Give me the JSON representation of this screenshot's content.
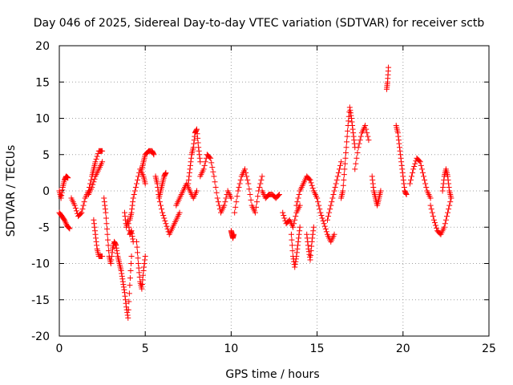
{
  "chart_data": {
    "type": "scatter",
    "title": "Day 046 of 2025, Sidereal Day-to-day VTEC variation (SDTVAR) for receiver sctb",
    "xlabel": "GPS time / hours",
    "ylabel": "SDTVAR / TECUs",
    "xlim": [
      0,
      25
    ],
    "ylim": [
      -20,
      20
    ],
    "x_ticks": [
      0,
      5,
      10,
      15,
      20,
      25
    ],
    "y_ticks": [
      -20,
      -15,
      -10,
      -5,
      0,
      5,
      10,
      15,
      20
    ],
    "x_tick_labels": [
      "0",
      "5",
      "10",
      "15",
      "20",
      "25"
    ],
    "y_tick_labels": [
      "-20",
      "-15",
      "-10",
      "-5",
      "0",
      "5",
      "10",
      "15",
      "20"
    ],
    "grid": true,
    "marker": "+",
    "marker_color": "#ff0000",
    "series": [
      {
        "name": "SDTVAR",
        "tracks": [
          {
            "x": [
              0.0,
              0.1,
              0.2,
              0.3,
              0.4,
              0.5
            ],
            "y": [
              0,
              -1,
              0.5,
              1.5,
              2,
              1.8
            ]
          },
          {
            "x": [
              0.0,
              0.15,
              0.3,
              0.45,
              0.6
            ],
            "y": [
              -3,
              -3.5,
              -4,
              -4.8,
              -5.2
            ]
          },
          {
            "x": [
              0.7,
              0.9,
              1.1,
              1.3,
              1.5,
              1.7,
              1.9,
              2.0,
              2.1,
              2.3,
              2.5
            ],
            "y": [
              -1,
              -2,
              -3.5,
              -3,
              -1,
              0,
              2,
              3,
              4,
              5.5,
              5.5
            ]
          },
          {
            "x": [
              1.7,
              1.9,
              2.1,
              2.3,
              2.5
            ],
            "y": [
              -0.5,
              0.5,
              2,
              3,
              4
            ]
          },
          {
            "x": [
              2.0,
              2.1,
              2.2,
              2.3,
              2.5
            ],
            "y": [
              -4,
              -6,
              -8,
              -9,
              -9
            ]
          },
          {
            "x": [
              2.6,
              2.7,
              2.8,
              2.9,
              3.0,
              3.1,
              3.2,
              3.3,
              3.4,
              3.5,
              3.6,
              3.7,
              3.8,
              3.9,
              4.0,
              4.1,
              4.2
            ],
            "y": [
              -1,
              -3,
              -6,
              -9,
              -10,
              -8,
              -7,
              -7.5,
              -9,
              -10,
              -11,
              -12.5,
              -14,
              -16,
              -17.5,
              -13,
              -9
            ]
          },
          {
            "x": [
              3.8,
              3.9,
              4.0,
              4.1,
              4.2,
              4.3
            ],
            "y": [
              -3,
              -5,
              -4,
              -6,
              -5.5,
              -7
            ]
          },
          {
            "x": [
              4.1,
              4.2,
              4.3,
              4.5,
              4.7,
              4.9,
              5.0
            ],
            "y": [
              -4,
              -3,
              -1,
              1,
              3,
              2,
              1
            ]
          },
          {
            "x": [
              4.5,
              4.6,
              4.7,
              4.8,
              4.9,
              5.0
            ],
            "y": [
              -7,
              -10,
              -12.5,
              -13.5,
              -11,
              -9
            ]
          },
          {
            "x": [
              4.8,
              4.9,
              5.0,
              5.2,
              5.4,
              5.5
            ],
            "y": [
              3,
              4,
              5,
              5.5,
              5.5,
              5
            ]
          },
          {
            "x": [
              5.6,
              5.7,
              5.8,
              6.0,
              6.2,
              6.4,
              6.6,
              6.8,
              7.0
            ],
            "y": [
              2,
              1,
              -1,
              -3,
              -4.5,
              -6,
              -5,
              -4,
              -3
            ]
          },
          {
            "x": [
              5.8,
              5.9,
              6.0,
              6.1,
              6.2
            ],
            "y": [
              -1,
              0,
              1,
              2,
              2.5
            ]
          },
          {
            "x": [
              6.8,
              7.0,
              7.2,
              7.4,
              7.6,
              7.8,
              8.0
            ],
            "y": [
              -2,
              -1,
              0,
              1,
              0,
              -1,
              0
            ]
          },
          {
            "x": [
              7.5,
              7.6,
              7.7,
              7.8,
              7.9,
              8.0,
              8.1,
              8.2
            ],
            "y": [
              1,
              3,
              5,
              6,
              8,
              8.5,
              6,
              4
            ]
          },
          {
            "x": [
              8.2,
              8.4,
              8.6,
              8.8,
              9.0,
              9.2,
              9.4,
              9.6,
              9.8,
              10.0
            ],
            "y": [
              2,
              3,
              5,
              4.5,
              2,
              -1,
              -3,
              -2,
              0,
              -1
            ]
          },
          {
            "x": [
              10.0,
              10.05,
              10.1,
              10.15
            ],
            "y": [
              -5.5,
              -6,
              -6.5,
              -6
            ]
          },
          {
            "x": [
              10.2,
              10.4,
              10.6,
              10.8,
              11.0,
              11.2,
              11.4,
              11.6,
              11.8
            ],
            "y": [
              -3,
              0,
              2,
              3,
              1,
              -2,
              -3,
              0,
              2
            ]
          },
          {
            "x": [
              11.8,
              12.0,
              12.2,
              12.4,
              12.6,
              12.8
            ],
            "y": [
              0,
              -1,
              -0.5,
              -0.5,
              -1,
              -0.5
            ]
          },
          {
            "x": [
              13.0,
              13.2,
              13.4,
              13.6,
              13.8,
              14.0
            ],
            "y": [
              -3,
              -4.5,
              -4,
              -5,
              -3,
              -2
            ]
          },
          {
            "x": [
              13.5,
              13.6,
              13.7,
              13.8,
              13.9,
              14.0
            ],
            "y": [
              -6,
              -9,
              -10.5,
              -9,
              -7,
              -5
            ]
          },
          {
            "x": [
              13.8,
              14.0,
              14.2,
              14.4,
              14.6,
              14.8,
              15.0
            ],
            "y": [
              -2,
              0,
              1,
              2,
              1.5,
              0,
              -1
            ]
          },
          {
            "x": [
              14.4,
              14.5,
              14.6,
              14.7,
              14.8
            ],
            "y": [
              -6,
              -8,
              -9.5,
              -7,
              -5
            ]
          },
          {
            "x": [
              15.0,
              15.2,
              15.4,
              15.6,
              15.8,
              16.0
            ],
            "y": [
              -1,
              -3,
              -4.5,
              -6,
              -7,
              -6
            ]
          },
          {
            "x": [
              15.6,
              15.8,
              16.0,
              16.2,
              16.4
            ],
            "y": [
              -4,
              -2,
              0,
              2,
              4
            ]
          },
          {
            "x": [
              16.4,
              16.5,
              16.6,
              16.7,
              16.8,
              16.9,
              17.0,
              17.1,
              17.2
            ],
            "y": [
              -1,
              0,
              3,
              6,
              9,
              11.5,
              10,
              8,
              6
            ]
          },
          {
            "x": [
              17.2,
              17.4,
              17.6,
              17.8,
              18.0
            ],
            "y": [
              3,
              6,
              8,
              9,
              7
            ]
          },
          {
            "x": [
              18.2,
              18.3,
              18.4,
              18.5,
              18.6,
              18.7
            ],
            "y": [
              2,
              0,
              -1,
              -2,
              -1,
              0
            ]
          },
          {
            "x": [
              19.05,
              19.1,
              19.15
            ],
            "y": [
              14,
              15,
              17
            ]
          },
          {
            "x": [
              19.6,
              19.7,
              19.8,
              19.9,
              20.0,
              20.1,
              20.2
            ],
            "y": [
              9,
              8,
              6,
              4,
              2,
              0,
              -0.5
            ]
          },
          {
            "x": [
              20.4,
              20.6,
              20.8,
              21.0,
              21.2,
              21.4,
              21.6
            ],
            "y": [
              1,
              3,
              4.5,
              4,
              2,
              0,
              -1
            ]
          },
          {
            "x": [
              21.6,
              21.8,
              22.0,
              22.2,
              22.4,
              22.6,
              22.8
            ],
            "y": [
              -2,
              -4,
              -5.5,
              -6,
              -5,
              -3,
              -1
            ]
          },
          {
            "x": [
              22.3,
              22.4,
              22.5,
              22.6,
              22.7,
              22.8
            ],
            "y": [
              0,
              2,
              3,
              2,
              0,
              -1
            ]
          }
        ]
      }
    ]
  }
}
